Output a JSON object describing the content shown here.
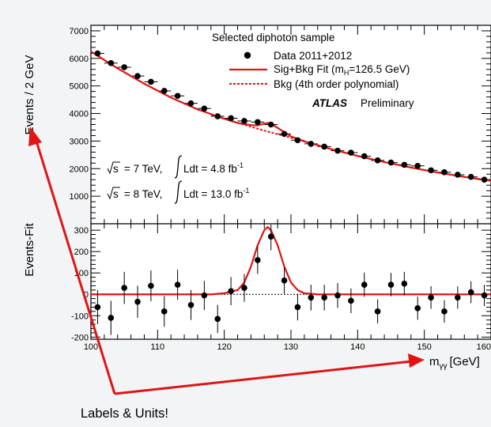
{
  "colors": {
    "fit": "#e01414",
    "data": "#000000",
    "annotation": "#e01414",
    "background": "#f3f4f6",
    "plot_bg": "#ffffff"
  },
  "annotation": {
    "caption": "Labels & Units!"
  },
  "chart_data": [
    {
      "type": "scatter",
      "panel": "top",
      "ylabel": "Events / 2 GeV",
      "ylim": [
        0,
        7200
      ],
      "xlim": [
        100,
        160
      ],
      "yticks": [
        "1000",
        "2000",
        "3000",
        "4000",
        "5000",
        "6000",
        "7000"
      ],
      "legend": {
        "header": "Selected diphoton sample",
        "data": "Data 2011+2012",
        "fit": "Sig+Bkg Fit (m",
        "fit_sub": "H",
        "fit_tail": "=126.5 GeV)",
        "bkg": "Bkg (4th order polynomial)",
        "experiment": "ATLAS",
        "status": "Preliminary",
        "placement": "top-right"
      },
      "lumi": {
        "line1_energy": "= 7 TeV,",
        "line1_lumi": "Ldt = 4.8 fb",
        "line2_energy": "= 8 TeV,",
        "line2_lumi": "Ldt = 13.0 fb",
        "sqrt_s": "s",
        "exponent": "-1"
      },
      "x": [
        101,
        103,
        105,
        107,
        109,
        111,
        113,
        115,
        117,
        119,
        121,
        123,
        125,
        127,
        129,
        131,
        133,
        135,
        137,
        139,
        141,
        143,
        145,
        147,
        149,
        151,
        153,
        155,
        157,
        159
      ],
      "values": [
        6180,
        5830,
        5680,
        5360,
        5150,
        4820,
        4640,
        4370,
        4180,
        3900,
        3830,
        3730,
        3690,
        3600,
        3260,
        3030,
        2900,
        2800,
        2650,
        2580,
        2450,
        2300,
        2220,
        2140,
        2100,
        1940,
        1870,
        1780,
        1700,
        1600
      ],
      "fit_curve_x": [
        100,
        104,
        108,
        112,
        116,
        120,
        122,
        124,
        125,
        126,
        126.5,
        127,
        128,
        130,
        132,
        136,
        140,
        144,
        148,
        152,
        156,
        160
      ],
      "fit_curve": [
        6250,
        5640,
        5080,
        4580,
        4150,
        3810,
        3660,
        3580,
        3570,
        3630,
        3660,
        3630,
        3480,
        3170,
        2990,
        2710,
        2460,
        2240,
        2040,
        1860,
        1700,
        1560
      ],
      "bkg_curve_x": [
        118,
        120,
        122,
        124,
        126,
        128,
        130,
        132
      ],
      "bkg_curve": [
        3960,
        3810,
        3660,
        3520,
        3380,
        3250,
        3120,
        2990
      ]
    },
    {
      "type": "scatter",
      "panel": "bottom",
      "ylabel": "Events-Fit",
      "xlabel": "m",
      "xlabel_sub": "γγ",
      "xunit": "[GeV]",
      "ylim": [
        -210,
        330
      ],
      "xlim": [
        100,
        160
      ],
      "yticks": [
        "-200",
        "-100",
        "0",
        "100",
        "200",
        "300"
      ],
      "xticks": [
        "100",
        "110",
        "120",
        "130",
        "140",
        "150",
        "160"
      ],
      "x": [
        101,
        103,
        105,
        107,
        109,
        111,
        113,
        115,
        117,
        119,
        121,
        123,
        125,
        127,
        129,
        131,
        133,
        135,
        137,
        139,
        141,
        143,
        145,
        147,
        149,
        151,
        153,
        155,
        157,
        159
      ],
      "values": [
        -60,
        -110,
        30,
        -35,
        40,
        -80,
        45,
        -50,
        -5,
        -115,
        15,
        30,
        160,
        270,
        65,
        -60,
        -15,
        -15,
        -5,
        -30,
        45,
        -80,
        45,
        50,
        -65,
        -15,
        -80,
        -15,
        10,
        -5
      ],
      "errors": [
        80,
        80,
        75,
        75,
        72,
        72,
        70,
        70,
        68,
        66,
        66,
        65,
        65,
        64,
        62,
        62,
        60,
        60,
        58,
        58,
        57,
        56,
        55,
        55,
        54,
        53,
        52,
        52,
        51,
        50
      ],
      "fit_curve_x": [
        100,
        118,
        120,
        122,
        123,
        124,
        125,
        126,
        126.5,
        127,
        128,
        129,
        130,
        131,
        132,
        134,
        160
      ],
      "fit_curve": [
        0,
        0,
        5,
        20,
        55,
        130,
        230,
        300,
        315,
        300,
        230,
        130,
        55,
        20,
        5,
        0,
        0
      ]
    }
  ]
}
